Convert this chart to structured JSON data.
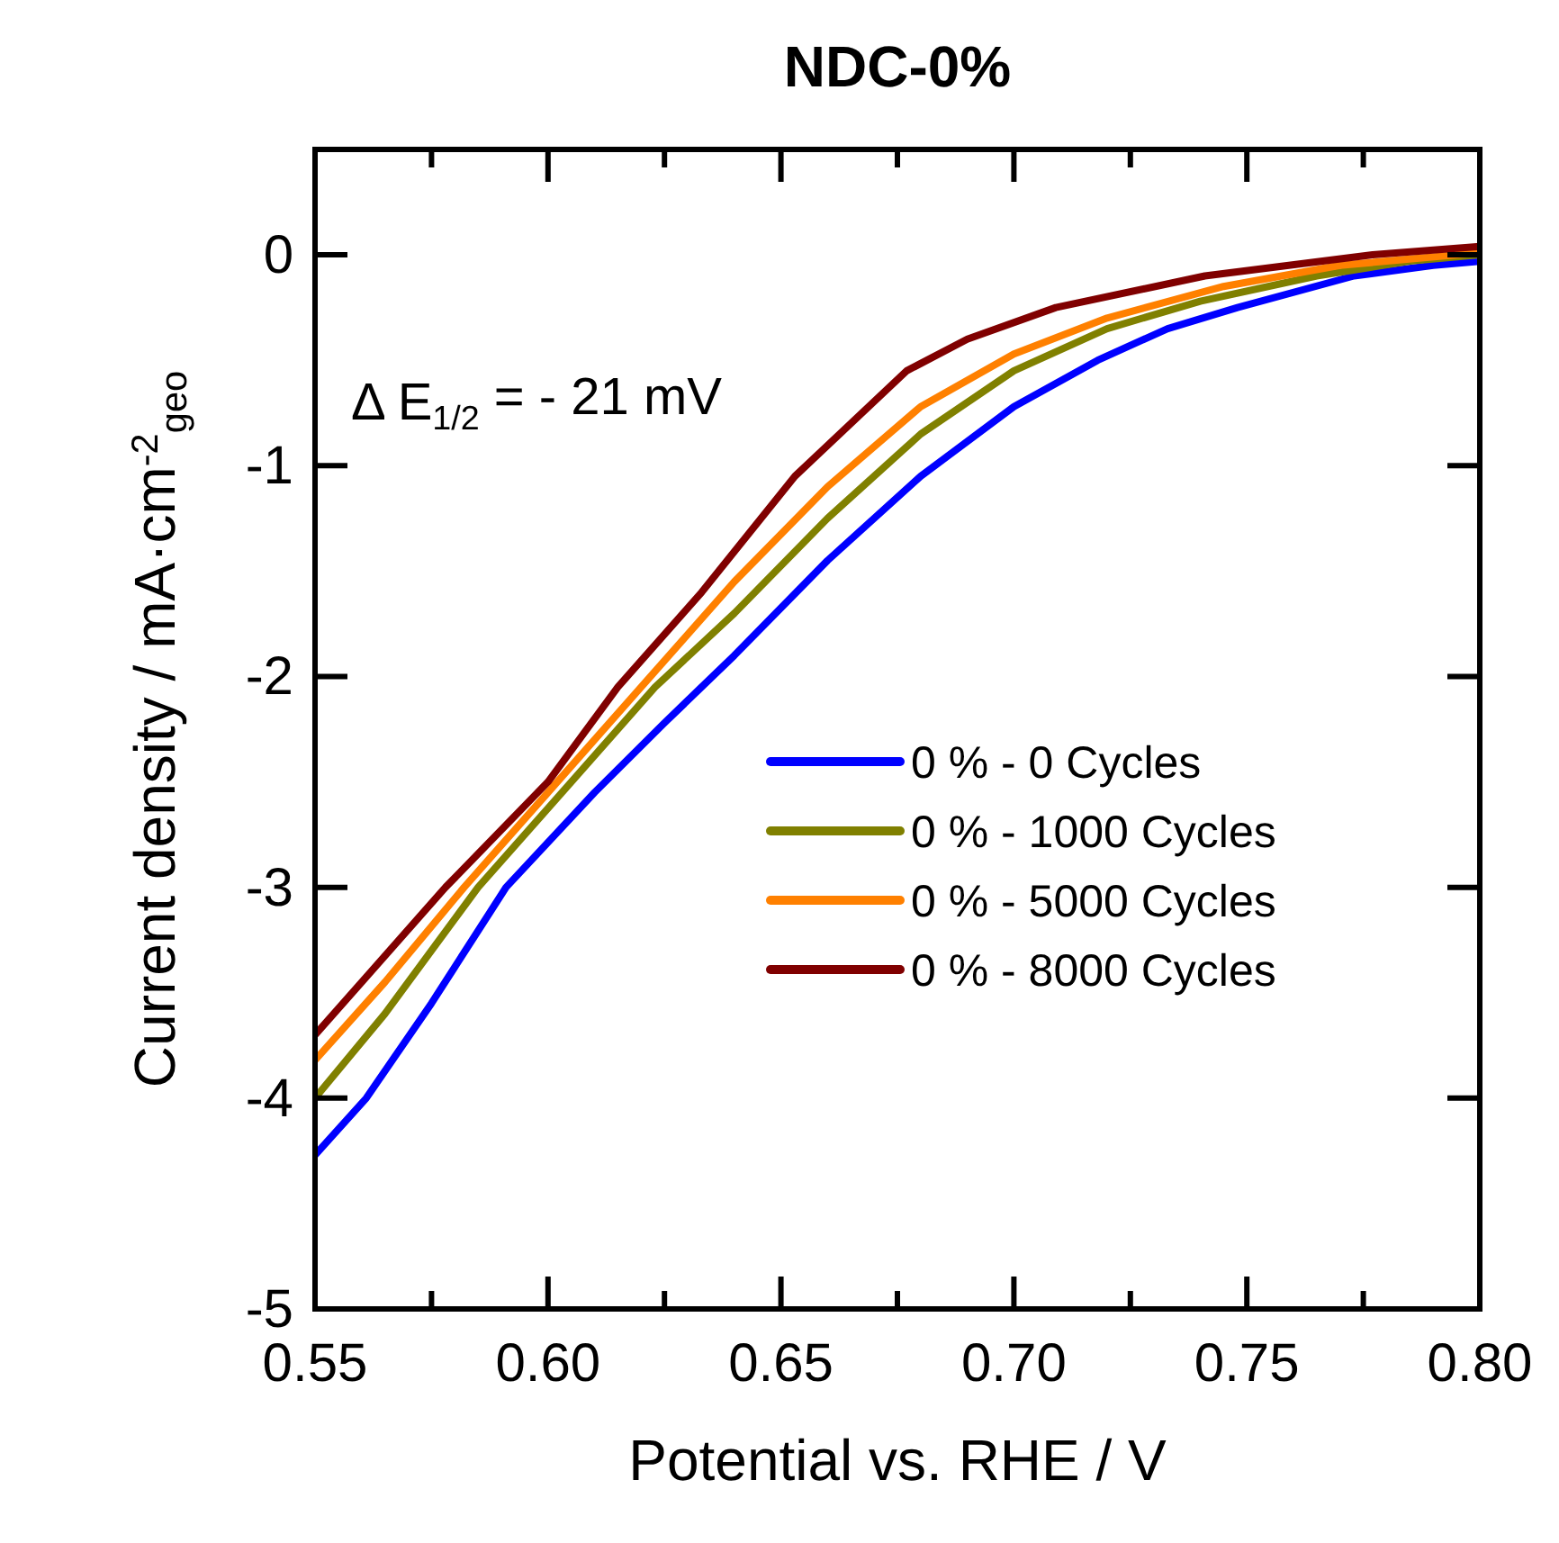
{
  "chart_data": {
    "type": "line",
    "title": "NDC-0%",
    "xlabel": "Potential vs. RHE / V",
    "ylabel": "Current density / mA·cm$^{-2}$$_{geo}$",
    "annotations": [
      "Δ E$_{1/2}$ = - 21 mV"
    ],
    "xlim": [
      0.55,
      0.8
    ],
    "ylim": [
      -5,
      0.5
    ],
    "xticks": [
      0.55,
      {
        "value": 0.575,
        "label": null
      },
      {
        "value": 0.6,
        "label": "0.60"
      },
      {
        "value": 0.625,
        "label": null
      },
      0.65,
      {
        "value": 0.675,
        "label": null
      },
      {
        "value": 0.7,
        "label": "0.70"
      },
      {
        "value": 0.725,
        "label": null
      },
      0.75,
      {
        "value": 0.775,
        "label": null
      },
      {
        "value": 0.8,
        "label": "0.80"
      }
    ],
    "yticks": [
      0,
      -1,
      -2,
      -3,
      -4,
      -5
    ],
    "legend": "right",
    "grid": false,
    "marker": "none",
    "line_style": "solid",
    "series": [
      {
        "name": "0 % - 0 Cycles",
        "color": "#0000ff",
        "x": [
          0.55,
          0.561,
          0.575,
          0.591,
          0.61,
          0.625,
          0.64,
          0.66,
          0.68,
          0.7,
          0.718,
          0.733,
          0.748,
          0.773,
          0.79,
          0.8
        ],
        "values": [
          -4.27,
          -4.0,
          -3.55,
          -3.0,
          -2.55,
          -2.22,
          -1.9,
          -1.45,
          -1.05,
          -0.72,
          -0.5,
          -0.35,
          -0.25,
          -0.1,
          -0.05,
          -0.03
        ]
      },
      {
        "name": "0 % - 1000 Cycles",
        "color": "#808000",
        "x": [
          0.55,
          0.565,
          0.585,
          0.605,
          0.623,
          0.64,
          0.66,
          0.68,
          0.7,
          0.72,
          0.74,
          0.765,
          0.785,
          0.8
        ],
        "values": [
          -4.0,
          -3.6,
          -3.0,
          -2.5,
          -2.05,
          -1.7,
          -1.25,
          -0.85,
          -0.55,
          -0.35,
          -0.22,
          -0.1,
          -0.03,
          0.0
        ]
      },
      {
        "name": "0 % - 5000 Cycles",
        "color": "#ff8000",
        "x": [
          0.55,
          0.565,
          0.582,
          0.6,
          0.62,
          0.64,
          0.66,
          0.68,
          0.7,
          0.72,
          0.745,
          0.77,
          0.8
        ],
        "values": [
          -3.82,
          -3.45,
          -3.0,
          -2.55,
          -2.05,
          -1.55,
          -1.1,
          -0.72,
          -0.47,
          -0.3,
          -0.15,
          -0.05,
          0.01
        ]
      },
      {
        "name": "0 % - 8000 Cycles",
        "color": "#800000",
        "x": [
          0.55,
          0.562,
          0.578,
          0.6,
          0.615,
          0.633,
          0.653,
          0.677,
          0.69,
          0.709,
          0.741,
          0.777,
          0.8
        ],
        "values": [
          -3.7,
          -3.4,
          -3.0,
          -2.5,
          -2.05,
          -1.6,
          -1.05,
          -0.55,
          -0.4,
          -0.25,
          -0.1,
          0.0,
          0.04
        ]
      }
    ]
  }
}
